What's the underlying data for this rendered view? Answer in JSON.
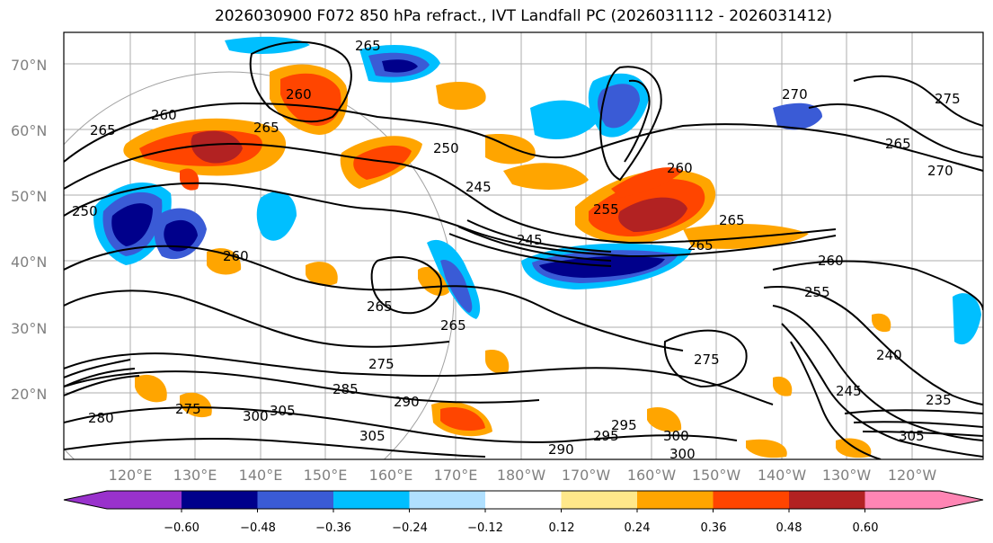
{
  "title": "2026030900 F072 850 hPa refract., IVT Landfall PC (2026031112 - 2026031412)",
  "lat_labels": [
    "70°N",
    "60°N",
    "50°N",
    "40°N",
    "30°N",
    "20°N"
  ],
  "lon_labels": [
    "120°E",
    "130°E",
    "140°E",
    "150°E",
    "160°E",
    "170°E",
    "180°W",
    "170°W",
    "160°W",
    "150°W",
    "140°W",
    "130°W",
    "120°W"
  ],
  "contour_labels": [
    "265",
    "260",
    "265",
    "265",
    "260",
    "250",
    "245",
    "245",
    "255",
    "260",
    "265",
    "265",
    "270",
    "265",
    "250",
    "260",
    "265",
    "265",
    "255",
    "260",
    "240",
    "245",
    "235",
    "275",
    "275",
    "285",
    "290",
    "295",
    "300",
    "305",
    "305",
    "280",
    "300",
    "275",
    "270",
    "275",
    "290",
    "295",
    "300",
    "305"
  ],
  "colorbar": {
    "tick_labels": [
      "−0.60",
      "−0.48",
      "−0.36",
      "−0.24",
      "−0.12",
      "0.12",
      "0.24",
      "0.36",
      "0.48",
      "0.60"
    ],
    "colors": [
      "#9932cc",
      "#00008b",
      "#3a5bd6",
      "#00bfff",
      "#b0e0ff",
      "#ffffff",
      "#ffe88a",
      "#ffa500",
      "#ff4500",
      "#b22222",
      "#ff85b4"
    ]
  }
}
